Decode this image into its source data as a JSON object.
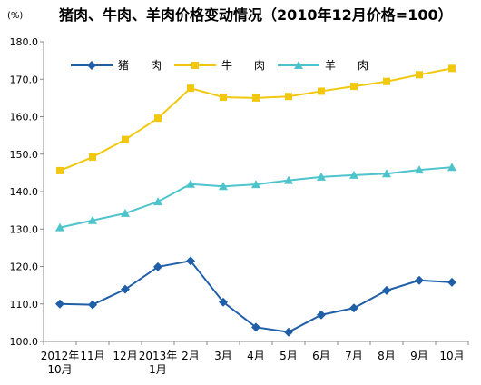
{
  "chart_data": {
    "type": "line",
    "title": "猪肉、牛肉、羊肉价格变动情况（2010年12月价格=100）",
    "unit": "(%)",
    "xlabel": "",
    "ylabel": "",
    "ylim": [
      100,
      180
    ],
    "yticks": [
      "100.0",
      "110.0",
      "120.0",
      "130.0",
      "140.0",
      "150.0",
      "160.0",
      "170.0",
      "180.0"
    ],
    "categories": [
      [
        "2012年",
        "10月"
      ],
      [
        "11月"
      ],
      [
        "12月"
      ],
      [
        "2013年",
        "1月"
      ],
      [
        "2月"
      ],
      [
        "3月"
      ],
      [
        "4月"
      ],
      [
        "5月"
      ],
      [
        "6月"
      ],
      [
        "7月"
      ],
      [
        "8月"
      ],
      [
        "9月"
      ],
      [
        "10月"
      ]
    ],
    "legend_position": "top-left",
    "grid": false,
    "series": [
      {
        "name": "猪　　肉",
        "color": "#1F5FA8",
        "marker": "diamond",
        "values": [
          110.0,
          109.8,
          113.9,
          119.9,
          121.5,
          110.5,
          103.8,
          102.5,
          107.1,
          108.9,
          113.6,
          116.3,
          115.8
        ]
      },
      {
        "name": "牛　　肉",
        "color": "#F2C80F",
        "marker": "square",
        "values": [
          145.6,
          149.2,
          153.9,
          159.6,
          167.6,
          165.2,
          165.0,
          165.4,
          166.8,
          168.1,
          169.4,
          171.2,
          172.9
        ]
      },
      {
        "name": "羊　　肉",
        "color": "#4DC4CC",
        "marker": "triangle",
        "values": [
          130.4,
          132.3,
          134.2,
          137.3,
          142.0,
          141.4,
          141.9,
          143.0,
          143.9,
          144.4,
          144.8,
          145.8,
          146.5
        ]
      }
    ]
  }
}
